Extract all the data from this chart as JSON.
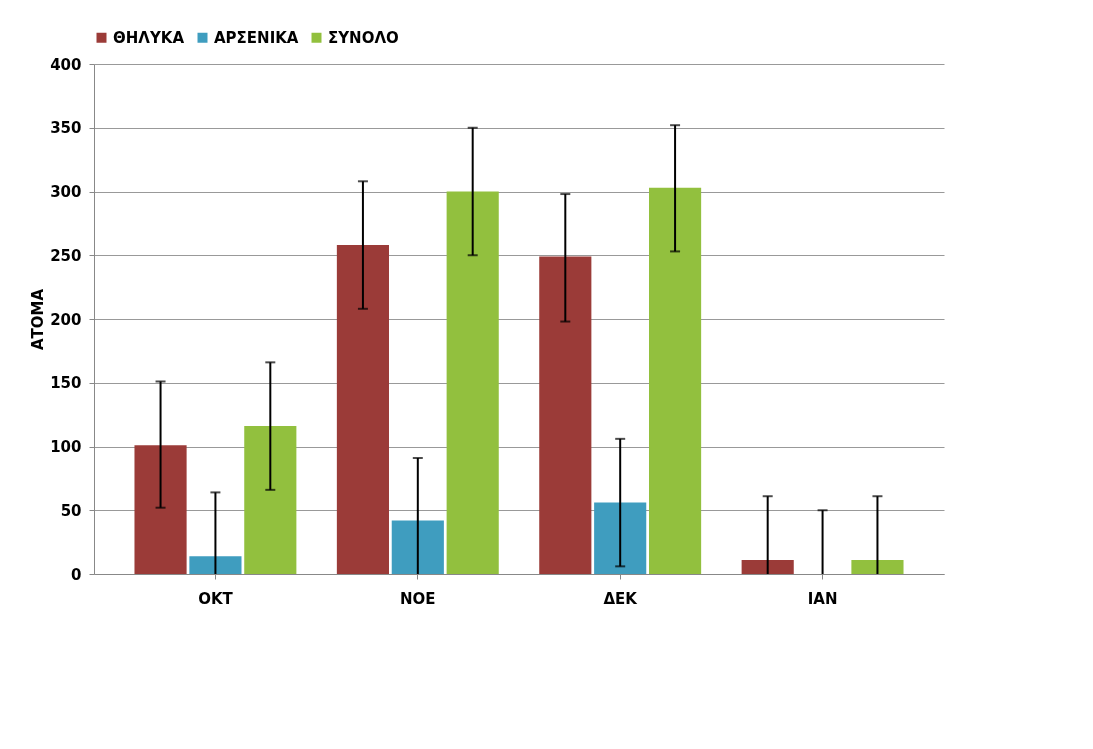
{
  "chart_data": {
    "type": "bar",
    "ylabel": "ΑΤΟΜΑ",
    "categories": [
      "ΟΚΤ",
      "ΝΟΕ",
      "ΔΕΚ",
      "ΙΑΝ"
    ],
    "series": [
      {
        "name": "ΘΗΛΥΚΑ",
        "color": "#9b3b38",
        "values": [
          101,
          258,
          249,
          11
        ],
        "errors": [
          [
            52,
            151
          ],
          [
            208,
            308
          ],
          [
            198,
            298
          ],
          [
            0,
            61
          ]
        ]
      },
      {
        "name": "ΑΡΣΕΝΙΚΑ",
        "color": "#3f9dbf",
        "values": [
          14,
          42,
          56,
          0
        ],
        "errors": [
          [
            0,
            64
          ],
          [
            0,
            91
          ],
          [
            6,
            106
          ],
          [
            0,
            50
          ]
        ]
      },
      {
        "name": "ΣΥΝΟΛΟ",
        "color": "#92c03e",
        "values": [
          116,
          300,
          303,
          11
        ],
        "errors": [
          [
            66,
            166
          ],
          [
            250,
            350
          ],
          [
            253,
            352
          ],
          [
            0,
            61
          ]
        ]
      }
    ],
    "ylim": [
      0,
      400
    ],
    "yticks": [
      0,
      50,
      100,
      150,
      200,
      250,
      300,
      350,
      400
    ],
    "grid": "y",
    "legend": "top"
  }
}
